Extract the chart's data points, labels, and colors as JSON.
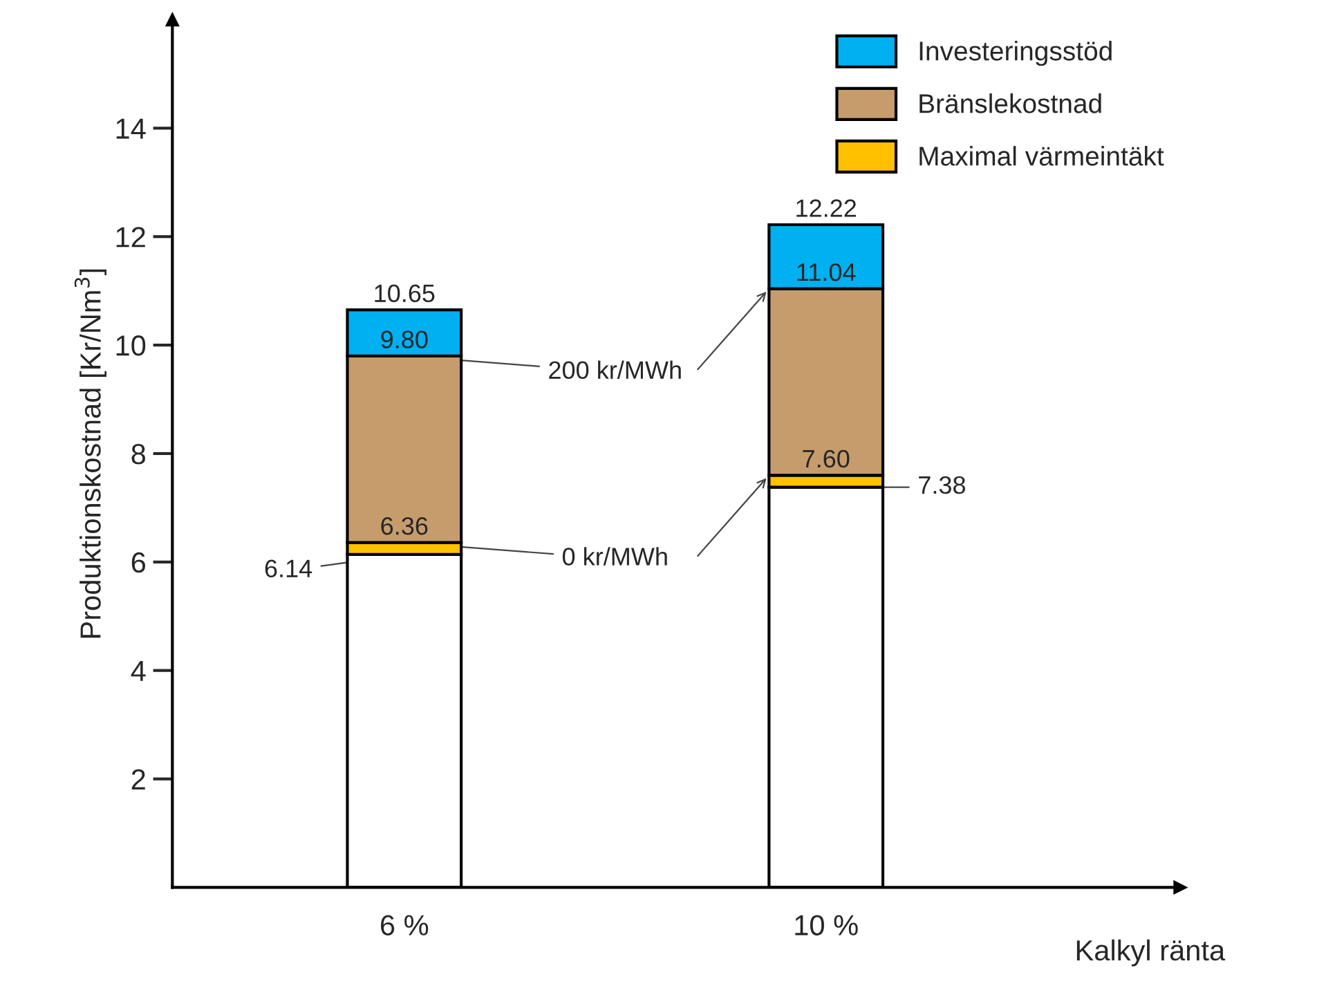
{
  "chart_data": {
    "type": "bar",
    "stacked": true,
    "ylabel": "Produktionskostnad [Kr/Nm$^{3}$]",
    "xlabel": "Kalkyl ränta",
    "categories": [
      "6 %",
      "10 %"
    ],
    "series": [
      {
        "color": "#ffffff",
        "values": [
          6.14,
          7.38
        ]
      },
      {
        "name": "Maximal värmeintäkt",
        "color": "#ffc000",
        "values": [
          0.22,
          0.22
        ]
      },
      {
        "name": "Bränslekostnad",
        "color": "#c69c6d",
        "values": [
          3.44,
          3.44
        ]
      },
      {
        "name": "Investeringsstöd",
        "color": "#00b0f0",
        "values": [
          0.85,
          1.18
        ]
      }
    ],
    "ylim": [
      0,
      16
    ],
    "yticks": [
      2,
      4,
      6,
      8,
      10,
      12,
      14
    ],
    "grid": false,
    "legend": "top right",
    "annotations": [
      {
        "text": "6.14",
        "x": "6 %",
        "y": 6.14
      },
      {
        "text": "6.36",
        "x": "6 %",
        "y": 6.36
      },
      {
        "text": "9.80",
        "x": "6 %",
        "y": 9.8
      },
      {
        "text": "10.65",
        "x": "6 %",
        "y": 10.65
      },
      {
        "text": "7.38",
        "x": "10 %",
        "y": 7.38
      },
      {
        "text": "7.60",
        "x": "10 %",
        "y": 7.6
      },
      {
        "text": "11.04",
        "x": "10 %",
        "y": 11.04
      },
      {
        "text": "12.22",
        "x": "10 %",
        "y": 12.22
      },
      {
        "text": "200 kr/MWh",
        "x": "6 %",
        "y": 9.8
      },
      {
        "text": "0 kr/MWh",
        "x": "6 %",
        "y": 6.36
      }
    ]
  }
}
